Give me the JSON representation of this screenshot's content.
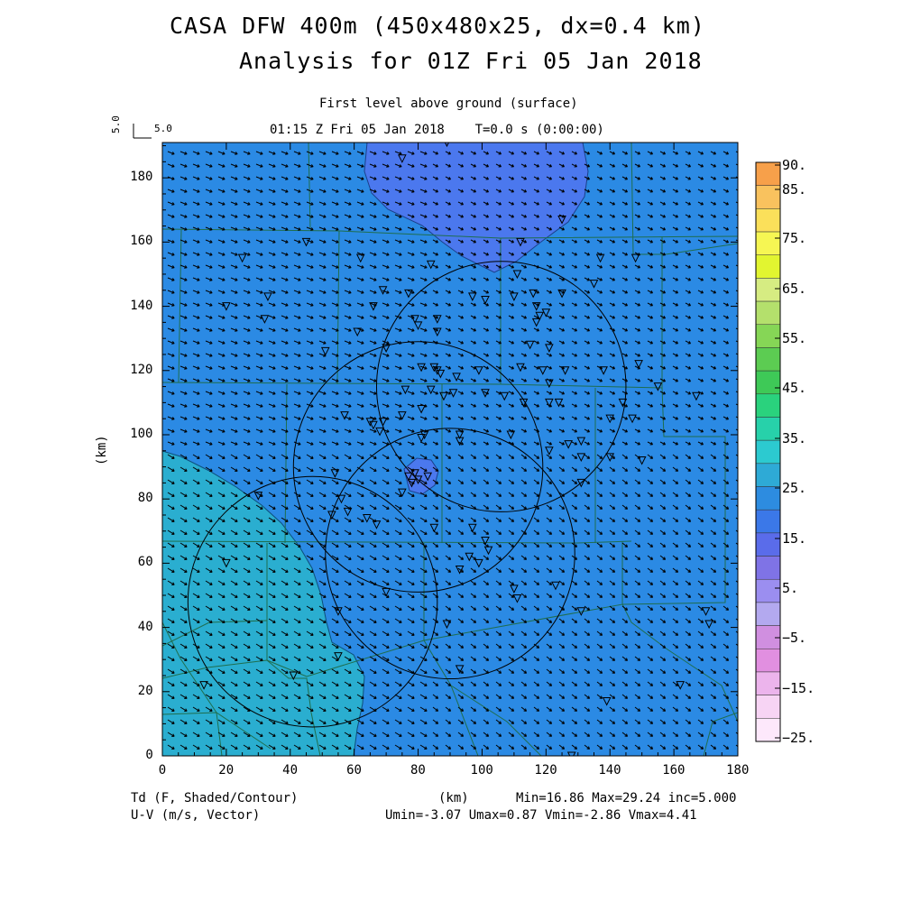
{
  "header": {
    "title_line1": "CASA DFW 400m (450x480x25, dx=0.4 km)",
    "title_line2": "Analysis for 01Z Fri 05 Jan 2018",
    "level_label": "First level above ground (surface)",
    "time_label": "01:15 Z Fri 05 Jan 2018    T=0.0 s (0:00:00)",
    "vector_ref_label": "5.0",
    "vector_ref_rot": "5.0"
  },
  "axes": {
    "x_ticks": [
      "0",
      "20",
      "40",
      "60",
      "80",
      "100",
      "120",
      "140",
      "160",
      "180"
    ],
    "y_ticks": [
      "0",
      "20",
      "40",
      "60",
      "80",
      "100",
      "120",
      "140",
      "160",
      "180"
    ],
    "y_label": "(km)",
    "x_unit": "(km)"
  },
  "colorbar": {
    "labels": [
      "90.",
      "85.",
      "75.",
      "65.",
      "55.",
      "45.",
      "35.",
      "25.",
      "15.",
      "5.",
      "−5.",
      "−15.",
      "−25."
    ],
    "colors": [
      "#f7a04a",
      "#f9c25e",
      "#fbe05a",
      "#f6f653",
      "#e2f530",
      "#d6ec82",
      "#b4e06c",
      "#86d656",
      "#5ccc52",
      "#3ec957",
      "#2ad27d",
      "#27d1aa",
      "#2ccad0",
      "#2eaad6",
      "#2d8ce0",
      "#3b78e8",
      "#5a6cea",
      "#7f73e6",
      "#9b8ef0",
      "#b3a9ef",
      "#d08fe0",
      "#e18fe0",
      "#ecb4ec",
      "#f7d4f4",
      "#fde8fb"
    ]
  },
  "footer": {
    "field_label": "Td (F, Shaded/Contour)",
    "vector_label": "U-V (m/s, Vector)",
    "km_label": "(km)",
    "stats_line1": "Min=16.86 Max=29.24 inc=5.000",
    "stats_line2": "Umin=-3.07 Umax=0.87 Vmin=-2.86 Vmax=4.41"
  },
  "field_colors": {
    "base": "#2b8ae4",
    "low": "#4b78ee",
    "high": "#2aaed0"
  },
  "map": {
    "x_range_km": [
      0,
      180
    ],
    "y_range_km": [
      0,
      191
    ],
    "radar_rings_km": [
      {
        "cx": 106,
        "cy": 115,
        "r": 39
      },
      {
        "cx": 80,
        "cy": 90,
        "r": 39
      },
      {
        "cx": 90,
        "cy": 63,
        "r": 39
      },
      {
        "cx": 47,
        "cy": 48,
        "r": 39
      }
    ],
    "stations_km": [
      [
        75,
        186
      ],
      [
        89,
        191
      ],
      [
        125,
        167
      ],
      [
        112,
        160
      ],
      [
        137,
        155
      ],
      [
        148,
        155
      ],
      [
        45,
        160
      ],
      [
        25,
        155
      ],
      [
        33,
        143
      ],
      [
        62,
        155
      ],
      [
        84,
        153
      ],
      [
        135,
        147
      ],
      [
        111,
        150
      ],
      [
        69,
        145
      ],
      [
        77,
        144
      ],
      [
        97,
        143
      ],
      [
        101,
        142
      ],
      [
        110,
        143
      ],
      [
        116,
        144
      ],
      [
        125,
        144
      ],
      [
        20,
        140
      ],
      [
        32,
        136
      ],
      [
        66,
        140
      ],
      [
        79,
        136
      ],
      [
        86,
        136
      ],
      [
        80,
        134
      ],
      [
        86,
        132
      ],
      [
        120,
        138
      ],
      [
        117,
        140
      ],
      [
        118,
        137
      ],
      [
        117,
        135
      ],
      [
        61,
        132
      ],
      [
        70,
        127
      ],
      [
        115,
        128
      ],
      [
        121,
        127
      ],
      [
        51,
        126
      ],
      [
        86,
        120
      ],
      [
        81,
        121
      ],
      [
        85,
        121
      ],
      [
        87,
        119
      ],
      [
        92,
        118
      ],
      [
        99,
        120
      ],
      [
        112,
        121
      ],
      [
        119,
        120
      ],
      [
        121,
        116
      ],
      [
        126,
        120
      ],
      [
        138,
        120
      ],
      [
        149,
        122
      ],
      [
        155,
        115
      ],
      [
        84,
        114
      ],
      [
        76,
        114
      ],
      [
        88,
        112
      ],
      [
        91,
        113
      ],
      [
        101,
        113
      ],
      [
        107,
        112
      ],
      [
        113,
        110
      ],
      [
        121,
        110
      ],
      [
        124,
        110
      ],
      [
        144,
        110
      ],
      [
        167,
        112
      ],
      [
        57,
        106
      ],
      [
        65,
        104
      ],
      [
        69,
        104
      ],
      [
        66,
        103
      ],
      [
        68,
        101
      ],
      [
        75,
        106
      ],
      [
        81,
        108
      ],
      [
        82,
        100
      ],
      [
        81,
        99
      ],
      [
        93,
        100
      ],
      [
        93,
        98
      ],
      [
        109,
        100
      ],
      [
        127,
        97
      ],
      [
        131,
        98
      ],
      [
        140,
        105
      ],
      [
        147,
        105
      ],
      [
        131,
        93
      ],
      [
        121,
        95
      ],
      [
        131,
        85
      ],
      [
        140,
        93
      ],
      [
        150,
        92
      ],
      [
        56,
        80
      ],
      [
        58,
        76
      ],
      [
        64,
        74
      ],
      [
        53,
        75
      ],
      [
        67,
        72
      ],
      [
        85,
        71
      ],
      [
        97,
        71
      ],
      [
        101,
        67
      ],
      [
        102,
        64
      ],
      [
        96,
        62
      ],
      [
        99,
        60
      ],
      [
        93,
        58
      ],
      [
        110,
        52
      ],
      [
        111,
        49
      ],
      [
        54,
        88
      ],
      [
        83,
        87
      ],
      [
        80,
        86
      ],
      [
        78,
        85
      ],
      [
        77,
        87
      ],
      [
        79,
        88
      ],
      [
        75,
        82
      ],
      [
        30,
        81
      ],
      [
        20,
        60
      ],
      [
        123,
        53
      ],
      [
        70,
        51
      ],
      [
        55,
        45
      ],
      [
        89,
        41
      ],
      [
        131,
        45
      ],
      [
        162,
        22
      ],
      [
        139,
        17
      ],
      [
        41,
        25
      ],
      [
        55,
        31
      ],
      [
        13,
        22
      ],
      [
        171,
        41
      ],
      [
        170,
        45
      ],
      [
        93,
        27
      ],
      [
        128,
        0
      ]
    ],
    "vector_ref_value": "5.0"
  }
}
